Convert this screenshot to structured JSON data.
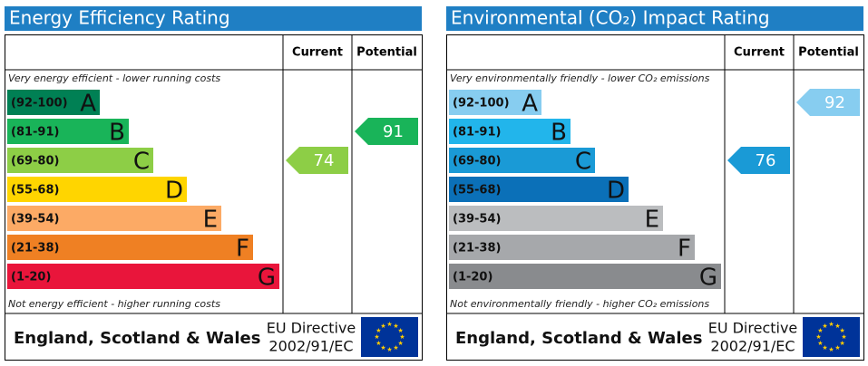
{
  "panels": [
    {
      "title": "Energy Efficiency Rating",
      "headers": [
        "Current",
        "Potential"
      ],
      "top_note": "Very energy efficient - lower running costs",
      "bottom_note": "Not energy efficient - higher running costs",
      "bands": [
        {
          "range": "(92-100)",
          "letter": "A",
          "color": "#008054"
        },
        {
          "range": "(81-91)",
          "letter": "B",
          "color": "#19b459"
        },
        {
          "range": "(69-80)",
          "letter": "C",
          "color": "#8dce46"
        },
        {
          "range": "(55-68)",
          "letter": "D",
          "color": "#ffd500"
        },
        {
          "range": "(39-54)",
          "letter": "E",
          "color": "#fcaa65"
        },
        {
          "range": "(21-38)",
          "letter": "F",
          "color": "#ef8023"
        },
        {
          "range": "(1-20)",
          "letter": "G",
          "color": "#e9153b"
        }
      ],
      "current": 74,
      "potential": 91,
      "footer": {
        "region": "England, Scotland & Wales",
        "directive": "EU Directive",
        "code": "2002/91/EC"
      }
    },
    {
      "title": "Environmental (CO₂) Impact Rating",
      "headers": [
        "Current",
        "Potential"
      ],
      "top_note": "Very environmentally friendly - lower CO₂ emissions",
      "bottom_note": "Not environmentally friendly - higher CO₂ emissions",
      "bands": [
        {
          "range": "(92-100)",
          "letter": "A",
          "color": "#87cdf0"
        },
        {
          "range": "(81-91)",
          "letter": "B",
          "color": "#22b5eb"
        },
        {
          "range": "(69-80)",
          "letter": "C",
          "color": "#1a9ad6"
        },
        {
          "range": "(55-68)",
          "letter": "D",
          "color": "#0b70b8"
        },
        {
          "range": "(39-54)",
          "letter": "E",
          "color": "#bbbdbf"
        },
        {
          "range": "(21-38)",
          "letter": "F",
          "color": "#a6a8ab"
        },
        {
          "range": "(1-20)",
          "letter": "G",
          "color": "#898b8e"
        }
      ],
      "current": 76,
      "potential": 92,
      "footer": {
        "region": "England, Scotland & Wales",
        "directive": "EU Directive",
        "code": "2002/91/EC"
      }
    }
  ]
}
